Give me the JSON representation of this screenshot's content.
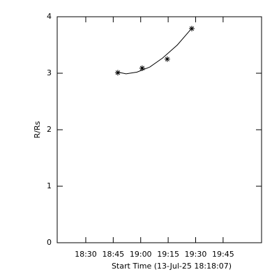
{
  "chart_data": {
    "type": "scatter",
    "xlabel": "Start Time (13-Jul-25 18:18:07)",
    "ylabel": "R/Rs",
    "series": [
      {
        "marker": "asterisk",
        "color": "#000000",
        "x": [
          1127.5,
          1140.8,
          1154.5,
          1167.9
        ],
        "values": [
          3.01,
          3.09,
          3.25,
          3.79
        ]
      },
      {
        "marker": "none",
        "color": "#000000",
        "x": [
          1127.5,
          1132,
          1138,
          1145,
          1152,
          1160,
          1168
        ],
        "values": [
          3.02,
          2.99,
          3.02,
          3.11,
          3.27,
          3.5,
          3.8
        ]
      }
    ],
    "xlim": [
      1094.4,
      1206
    ],
    "xticks": [
      {
        "value": 1110,
        "label": "18:30"
      },
      {
        "value": 1125,
        "label": "18:45"
      },
      {
        "value": 1140,
        "label": "19:00"
      },
      {
        "value": 1155,
        "label": "19:15"
      },
      {
        "value": 1170,
        "label": "19:30"
      },
      {
        "value": 1185,
        "label": "19:45"
      }
    ],
    "ylim": [
      0,
      4
    ],
    "yticks": [
      0,
      1,
      2,
      3,
      4
    ]
  }
}
